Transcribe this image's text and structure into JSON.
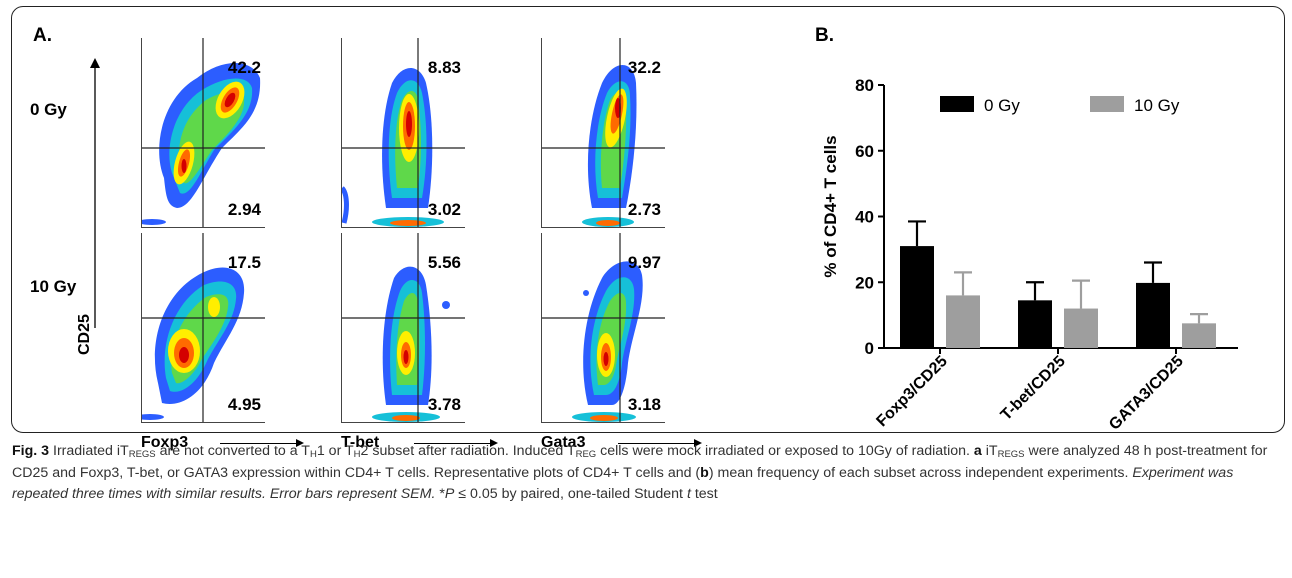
{
  "panel_a": {
    "label": "A.",
    "rows": [
      {
        "label": "0 Gy"
      },
      {
        "label": "10 Gy"
      }
    ],
    "y_axis_label": "CD25",
    "columns": [
      {
        "marker": "Foxp3"
      },
      {
        "marker": "T-bet"
      },
      {
        "marker": "Gata3"
      }
    ],
    "quadrants": [
      [
        {
          "upper": "42.2",
          "lower": "2.94"
        },
        {
          "upper": "8.83",
          "lower": "3.02"
        },
        {
          "upper": "32.2",
          "lower": "2.73"
        }
      ],
      [
        {
          "upper": "17.5",
          "lower": "4.95"
        },
        {
          "upper": "5.56",
          "lower": "3.78"
        },
        {
          "upper": "9.97",
          "lower": "3.18"
        }
      ]
    ]
  },
  "panel_b": {
    "label": "B."
  },
  "chart_data": {
    "type": "bar",
    "categories": [
      "Foxp3/CD25",
      "T-bet/CD25",
      "GATA3/CD25"
    ],
    "series": [
      {
        "name": "0 Gy",
        "color": "#000000",
        "values": [
          31,
          14.5,
          19.8
        ],
        "errors": [
          7.5,
          5.5,
          6.2
        ]
      },
      {
        "name": "10 Gy",
        "color": "#9e9e9e",
        "values": [
          16,
          12,
          7.5
        ],
        "errors": [
          7,
          8.5,
          2.8
        ]
      }
    ],
    "ylabel": "% of CD4+ T cells",
    "xlabel": "",
    "ylim": [
      0,
      80
    ],
    "yticks": [
      "0",
      "20",
      "40",
      "60",
      "80"
    ],
    "legend_position": "top"
  },
  "caption": {
    "fig_label": "Fig. 3",
    "title_1": " Irradiated iT",
    "title_sub_regs": "REGS",
    "title_2": " are not converted to a T",
    "sub_h1": "H",
    "title_3": "1 or T",
    "sub_h2": "H",
    "title_4": "2 subset after radiation. Induced T",
    "sub_reg": "REG",
    "title_5": " cells were mock irradiated or exposed to 10Gy of radiation. ",
    "a_label": "a",
    "a_1": " iT",
    "a_sub": "REGS",
    "a_2": " were analyzed 48 h post-treatment for CD25 and Foxp3, T-bet, or GATA3 expression within CD4+ T cells. Representative plots of CD4+ T cells and (",
    "b_label": "b",
    "b_1": ") mean frequency of each subset across independent experiments. ",
    "italic_1": "Experiment was repeated three times with similar results. Error bars represent SEM.",
    "stat_1": " *",
    "stat_p": "P",
    "stat_2": " ≤ 0.05 by paired, one-tailed Student ",
    "stat_t": "t",
    "stat_3": " test"
  }
}
